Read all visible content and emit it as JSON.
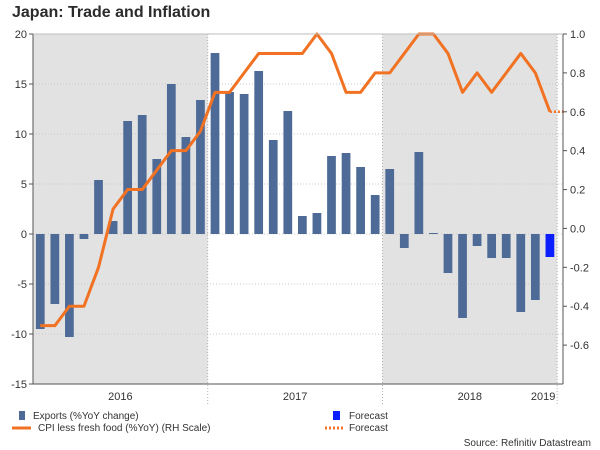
{
  "chart_data": {
    "type": "bar+line",
    "title": "Japan: Trade and Inflation",
    "x_labels": [
      "2016",
      "2017",
      "2018",
      "2019"
    ],
    "left_axis": {
      "ylim": [
        -15,
        20
      ],
      "ticks": [
        "-15",
        "-10",
        "-5",
        "0",
        "5",
        "10",
        "15",
        "20"
      ]
    },
    "right_axis": {
      "ylim": [
        -0.8,
        1.0
      ],
      "ticks": [
        "-0.6",
        "-0.4",
        "-0.2",
        "0.0",
        "0.2",
        "0.4",
        "0.6",
        "0.8",
        "1.0"
      ]
    },
    "months": [
      "2016-01",
      "2016-02",
      "2016-03",
      "2016-04",
      "2016-05",
      "2016-06",
      "2016-07",
      "2016-08",
      "2016-09",
      "2016-10",
      "2016-11",
      "2016-12",
      "2017-01",
      "2017-02",
      "2017-03",
      "2017-04",
      "2017-05",
      "2017-06",
      "2017-07",
      "2017-08",
      "2017-09",
      "2017-10",
      "2017-11",
      "2017-12",
      "2018-01",
      "2018-02",
      "2018-03",
      "2018-04",
      "2018-05",
      "2018-06",
      "2018-07",
      "2018-08",
      "2018-09",
      "2018-10",
      "2018-11",
      "2018-12",
      "2019-01",
      "2019-02",
      "2019-03",
      "2019-04",
      "2019-05",
      "2019-06"
    ],
    "series": [
      {
        "name": "Exports (%YoY change)",
        "axis": "left",
        "kind": "bar",
        "color": "#4e6a96",
        "values": [
          -9.5,
          -7.0,
          -10.3,
          -0.5,
          5.4,
          1.3,
          11.3,
          11.9,
          7.5,
          15.0,
          9.7,
          13.4,
          18.1,
          14.2,
          14.0,
          16.3,
          9.4,
          12.3,
          1.8,
          2.1,
          7.8,
          8.1,
          6.7,
          3.9,
          6.5,
          -1.4,
          8.2,
          0.1,
          -3.9,
          -8.4,
          -1.2,
          -2.4,
          -2.4,
          -7.8,
          -6.6,
          null
        ]
      },
      {
        "name": "Forecast",
        "axis": "left",
        "kind": "bar",
        "color": "#0a1eff",
        "values": [
          null,
          null,
          null,
          null,
          null,
          null,
          null,
          null,
          null,
          null,
          null,
          null,
          null,
          null,
          null,
          null,
          null,
          null,
          null,
          null,
          null,
          null,
          null,
          null,
          null,
          null,
          null,
          null,
          null,
          null,
          null,
          null,
          null,
          null,
          null,
          -2.3
        ]
      },
      {
        "name": "CPI less fresh food (%YoY)  (RH Scale)",
        "axis": "right",
        "kind": "line",
        "color": "#f07222",
        "values": [
          -0.5,
          -0.5,
          -0.4,
          -0.4,
          -0.2,
          0.1,
          0.2,
          0.2,
          0.3,
          0.4,
          0.4,
          0.5,
          0.7,
          0.7,
          0.8,
          0.9,
          0.9,
          0.9,
          0.9,
          1.0,
          0.9,
          0.7,
          0.7,
          0.8,
          0.8,
          0.9,
          1.0,
          1.0,
          0.9,
          0.7,
          0.8,
          0.7,
          0.8,
          0.9,
          0.8,
          0.6
        ]
      },
      {
        "name": "Forecast",
        "axis": "right",
        "kind": "line-dotted",
        "color": "#f07222",
        "values": [
          null,
          null,
          null,
          null,
          null,
          null,
          null,
          null,
          null,
          null,
          null,
          null,
          null,
          null,
          null,
          null,
          null,
          null,
          null,
          null,
          null,
          null,
          null,
          null,
          null,
          null,
          null,
          null,
          null,
          null,
          null,
          null,
          null,
          null,
          null,
          0.6,
          0.6
        ]
      }
    ],
    "legend": {
      "items": [
        {
          "label": "Exports (%YoY change)",
          "kind": "bar",
          "color": "#4e6a96"
        },
        {
          "label": "Forecast",
          "kind": "bar",
          "color": "#0a1eff"
        },
        {
          "label": "CPI less fresh food (%YoY)  (RH Scale)",
          "kind": "line",
          "color": "#f07222"
        },
        {
          "label": "Forecast",
          "kind": "line-dotted",
          "color": "#f07222"
        }
      ]
    },
    "shading": "alternate years",
    "source": "Source: Refinitiv Datastream"
  }
}
